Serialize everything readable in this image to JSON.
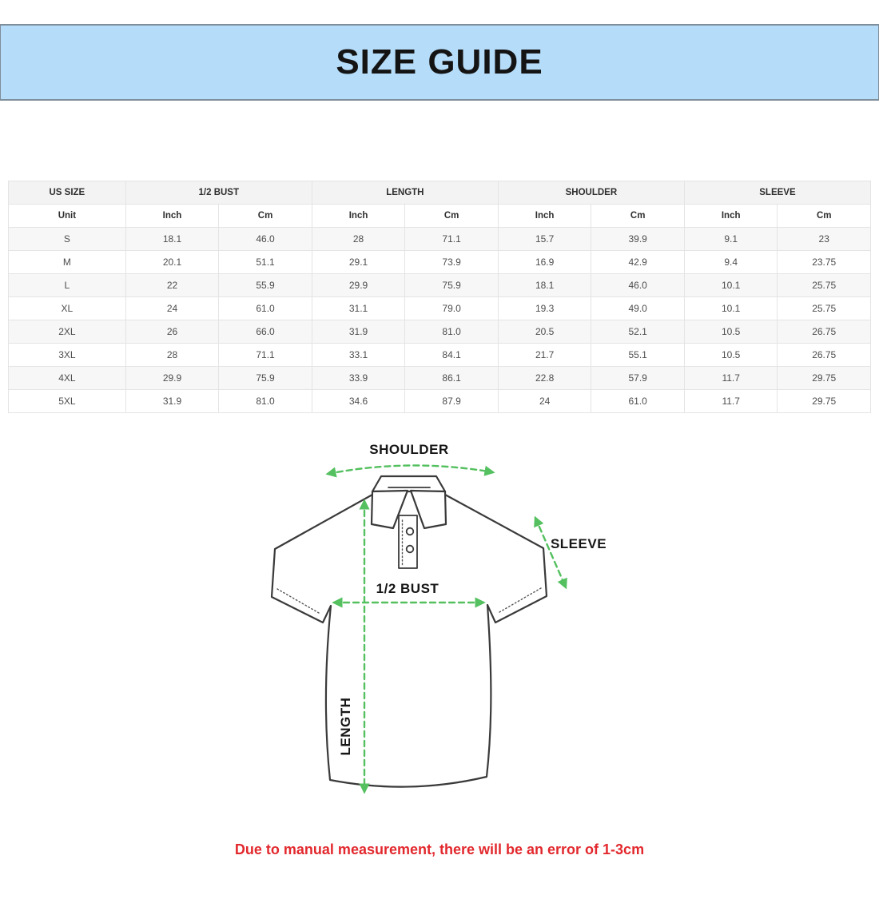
{
  "banner": {
    "title": "SIZE GUIDE",
    "bg_color": "#b5dcf8",
    "border_color": "#7f8e9b"
  },
  "table": {
    "groups": [
      {
        "label": "US SIZE",
        "span": 1
      },
      {
        "label": "1/2 BUST",
        "span": 2
      },
      {
        "label": "LENGTH",
        "span": 2
      },
      {
        "label": "SHOULDER",
        "span": 2
      },
      {
        "label": "SLEEVE",
        "span": 2
      }
    ],
    "unit_row": [
      "Unit",
      "Inch",
      "Cm",
      "Inch",
      "Cm",
      "Inch",
      "Cm",
      "Inch",
      "Cm"
    ],
    "rows": [
      [
        "S",
        "18.1",
        "46.0",
        "28",
        "71.1",
        "15.7",
        "39.9",
        "9.1",
        "23"
      ],
      [
        "M",
        "20.1",
        "51.1",
        "29.1",
        "73.9",
        "16.9",
        "42.9",
        "9.4",
        "23.75"
      ],
      [
        "L",
        "22",
        "55.9",
        "29.9",
        "75.9",
        "18.1",
        "46.0",
        "10.1",
        "25.75"
      ],
      [
        "XL",
        "24",
        "61.0",
        "31.1",
        "79.0",
        "19.3",
        "49.0",
        "10.1",
        "25.75"
      ],
      [
        "2XL",
        "26",
        "66.0",
        "31.9",
        "81.0",
        "20.5",
        "52.1",
        "10.5",
        "26.75"
      ],
      [
        "3XL",
        "28",
        "71.1",
        "33.1",
        "84.1",
        "21.7",
        "55.1",
        "10.5",
        "26.75"
      ],
      [
        "4XL",
        "29.9",
        "75.9",
        "33.9",
        "86.1",
        "22.8",
        "57.9",
        "11.7",
        "29.75"
      ],
      [
        "5XL",
        "31.9",
        "81.0",
        "34.6",
        "87.9",
        "24",
        "61.0",
        "11.7",
        "29.75"
      ]
    ]
  },
  "diagram": {
    "labels": {
      "shoulder": "SHOULDER",
      "sleeve": "SLEEVE",
      "bust": "1/2 BUST",
      "length": "LENGTH"
    },
    "arrow_color": "#54c05f"
  },
  "note": {
    "text": "Due to manual measurement, there will be an error of 1-3cm",
    "color": "#e2282d"
  }
}
